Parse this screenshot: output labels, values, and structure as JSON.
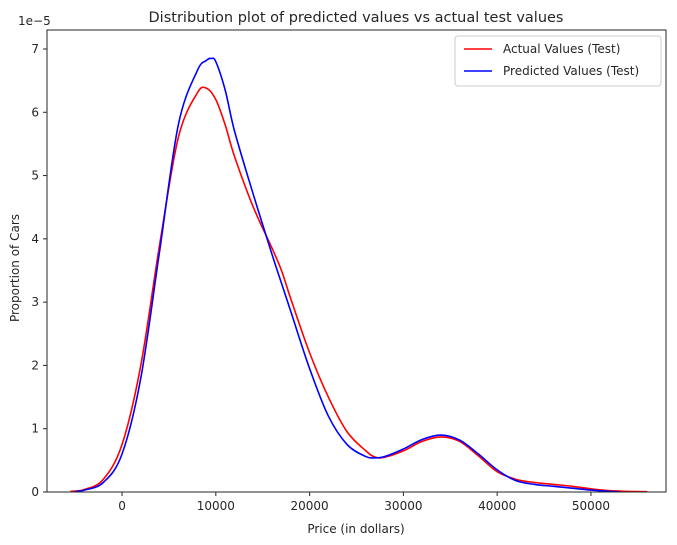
{
  "chart_data": {
    "type": "line",
    "title": "Distribution plot of predicted values vs actual test values",
    "xlabel": "Price (in dollars)",
    "ylabel": "Proportion of Cars",
    "y_offset_label": "1e−5",
    "xlim": [
      -8000,
      58000
    ],
    "ylim": [
      0,
      7.3
    ],
    "xticks": [
      0,
      10000,
      20000,
      30000,
      40000,
      50000
    ],
    "xtick_labels": [
      "0",
      "10000",
      "20000",
      "30000",
      "40000",
      "50000"
    ],
    "yticks": [
      0,
      1,
      2,
      3,
      4,
      5,
      6,
      7
    ],
    "ytick_labels": [
      "0",
      "1",
      "2",
      "3",
      "4",
      "5",
      "6",
      "7"
    ],
    "grid": false,
    "legend_position": "top-right",
    "series": [
      {
        "name": "Actual Values (Test)",
        "color": "#ff0000",
        "x": [
          -5500,
          -4000,
          -2000,
          0,
          2000,
          4000,
          6000,
          8000,
          9000,
          10000,
          11000,
          12000,
          14000,
          16000,
          17000,
          18000,
          20000,
          22000,
          24000,
          26000,
          27000,
          28000,
          30000,
          32000,
          34000,
          36000,
          38000,
          40000,
          42000,
          44000,
          46000,
          48000,
          50000,
          52000,
          54000,
          56000
        ],
        "y": [
          0.01,
          0.04,
          0.2,
          0.75,
          2.0,
          3.9,
          5.6,
          6.3,
          6.38,
          6.2,
          5.8,
          5.3,
          4.5,
          3.85,
          3.5,
          3.05,
          2.2,
          1.5,
          0.95,
          0.65,
          0.55,
          0.55,
          0.65,
          0.8,
          0.87,
          0.8,
          0.57,
          0.32,
          0.2,
          0.15,
          0.12,
          0.09,
          0.05,
          0.02,
          0.01,
          0.005
        ]
      },
      {
        "name": "Predicted Values (Test)",
        "color": "#0000ff",
        "x": [
          -5000,
          -4000,
          -2000,
          0,
          2000,
          4000,
          6000,
          8000,
          9000,
          9500,
          10000,
          11000,
          12000,
          14000,
          16000,
          17000,
          18000,
          20000,
          22000,
          24000,
          26000,
          27000,
          28000,
          30000,
          32000,
          34000,
          36000,
          38000,
          40000,
          42000,
          44000,
          46000,
          48000,
          50000,
          52000,
          53000
        ],
        "y": [
          0.01,
          0.03,
          0.15,
          0.6,
          1.8,
          3.8,
          5.8,
          6.65,
          6.82,
          6.85,
          6.8,
          6.35,
          5.7,
          4.7,
          3.75,
          3.3,
          2.85,
          1.95,
          1.2,
          0.75,
          0.56,
          0.54,
          0.56,
          0.68,
          0.83,
          0.9,
          0.82,
          0.6,
          0.35,
          0.18,
          0.12,
          0.09,
          0.06,
          0.03,
          0.01,
          0.005
        ]
      }
    ]
  }
}
